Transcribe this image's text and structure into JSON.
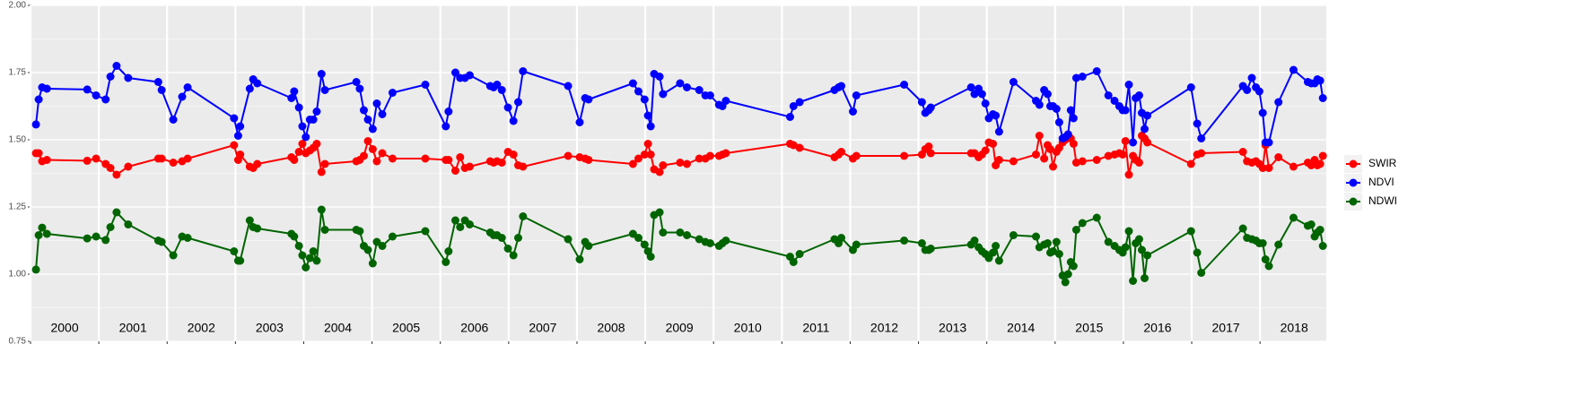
{
  "chart_data": {
    "type": "line",
    "x": [
      2000.08,
      2000.12,
      2000.17,
      2000.24,
      2000.83,
      2000.96,
      2001.1,
      2001.17,
      2001.26,
      2001.43,
      2001.87,
      2001.92,
      2002.09,
      2002.22,
      2002.3,
      2002.98,
      2003.04,
      2003.07,
      2003.21,
      2003.26,
      2003.32,
      2003.82,
      2003.86,
      2003.93,
      2003.98,
      2004.03,
      2004.09,
      2004.14,
      2004.19,
      2004.26,
      2004.31,
      2004.77,
      2004.82,
      2004.88,
      2004.94,
      2005.01,
      2005.07,
      2005.15,
      2005.3,
      2005.78,
      2006.08,
      2006.12,
      2006.22,
      2006.29,
      2006.36,
      2006.43,
      2006.73,
      2006.78,
      2006.83,
      2006.9,
      2006.99,
      2007.07,
      2007.14,
      2007.21,
      2007.87,
      2008.04,
      2008.12,
      2008.17,
      2008.82,
      2008.9,
      2008.99,
      2009.04,
      2009.08,
      2009.13,
      2009.21,
      2009.26,
      2009.51,
      2009.61,
      2009.79,
      2009.88,
      2009.95,
      2010.08,
      2010.13,
      2010.18,
      2011.12,
      2011.17,
      2011.26,
      2011.77,
      2011.83,
      2011.87,
      2012.04,
      2012.09,
      2012.79,
      2013.05,
      2013.1,
      2013.15,
      2013.18,
      2013.77,
      2013.82,
      2013.88,
      2013.93,
      2013.98,
      2014.03,
      2014.09,
      2014.13,
      2014.18,
      2014.39,
      2014.72,
      2014.77,
      2014.84,
      2014.89,
      2014.93,
      2014.97,
      2015.02,
      2015.06,
      2015.11,
      2015.15,
      2015.19,
      2015.23,
      2015.27,
      2015.31,
      2015.4,
      2015.61,
      2015.78,
      2015.87,
      2015.94,
      2015.99,
      2016.03,
      2016.08,
      2016.14,
      2016.18,
      2016.23,
      2016.27,
      2016.31,
      2016.35,
      2016.99,
      2017.08,
      2017.14,
      2017.75,
      2017.81,
      2017.88,
      2017.94,
      2017.99,
      2018.04,
      2018.08,
      2018.13,
      2018.27,
      2018.49,
      2018.7,
      2018.75,
      2018.8,
      2018.84,
      2018.88,
      2018.92
    ],
    "series": [
      {
        "name": "SWIR",
        "color": "#ff0000",
        "values": [
          1.45,
          1.45,
          1.42,
          1.425,
          1.422,
          1.43,
          1.41,
          1.395,
          1.37,
          1.4,
          1.43,
          1.43,
          1.415,
          1.42,
          1.43,
          1.48,
          1.425,
          1.445,
          1.4,
          1.395,
          1.41,
          1.435,
          1.425,
          1.455,
          1.485,
          1.45,
          1.46,
          1.47,
          1.485,
          1.38,
          1.41,
          1.42,
          1.425,
          1.44,
          1.495,
          1.465,
          1.42,
          1.45,
          1.43,
          1.43,
          1.425,
          1.425,
          1.385,
          1.435,
          1.395,
          1.4,
          1.42,
          1.415,
          1.42,
          1.415,
          1.455,
          1.445,
          1.405,
          1.4,
          1.44,
          1.435,
          1.43,
          1.425,
          1.41,
          1.43,
          1.445,
          1.485,
          1.445,
          1.39,
          1.38,
          1.405,
          1.415,
          1.41,
          1.43,
          1.43,
          1.44,
          1.44,
          1.445,
          1.45,
          1.485,
          1.48,
          1.47,
          1.435,
          1.445,
          1.455,
          1.43,
          1.44,
          1.44,
          1.445,
          1.465,
          1.475,
          1.45,
          1.45,
          1.45,
          1.435,
          1.445,
          1.46,
          1.49,
          1.485,
          1.405,
          1.425,
          1.42,
          1.445,
          1.515,
          1.43,
          1.48,
          1.465,
          1.4,
          1.455,
          1.47,
          1.49,
          1.5,
          1.52,
          1.505,
          1.485,
          1.415,
          1.42,
          1.425,
          1.44,
          1.445,
          1.45,
          1.445,
          1.495,
          1.37,
          1.44,
          1.425,
          1.415,
          1.515,
          1.505,
          1.49,
          1.41,
          1.445,
          1.45,
          1.455,
          1.42,
          1.415,
          1.42,
          1.41,
          1.395,
          1.48,
          1.395,
          1.435,
          1.4,
          1.415,
          1.405,
          1.425,
          1.405,
          1.41,
          1.44
        ]
      },
      {
        "name": "NDVI",
        "color": "#0000ff",
        "values": [
          1.557,
          1.65,
          1.695,
          1.69,
          1.687,
          1.665,
          1.65,
          1.735,
          1.775,
          1.73,
          1.715,
          1.685,
          1.575,
          1.66,
          1.695,
          1.58,
          1.515,
          1.55,
          1.69,
          1.725,
          1.71,
          1.655,
          1.68,
          1.62,
          1.55,
          1.51,
          1.575,
          1.575,
          1.605,
          1.745,
          1.685,
          1.715,
          1.69,
          1.61,
          1.575,
          1.54,
          1.635,
          1.595,
          1.675,
          1.705,
          1.55,
          1.605,
          1.75,
          1.73,
          1.73,
          1.74,
          1.7,
          1.695,
          1.705,
          1.685,
          1.62,
          1.57,
          1.64,
          1.755,
          1.7,
          1.565,
          1.655,
          1.65,
          1.71,
          1.68,
          1.65,
          1.59,
          1.55,
          1.745,
          1.735,
          1.67,
          1.71,
          1.695,
          1.685,
          1.665,
          1.665,
          1.63,
          1.625,
          1.645,
          1.585,
          1.625,
          1.64,
          1.685,
          1.695,
          1.7,
          1.605,
          1.665,
          1.705,
          1.64,
          1.6,
          1.61,
          1.62,
          1.695,
          1.67,
          1.69,
          1.67,
          1.635,
          1.58,
          1.595,
          1.59,
          1.53,
          1.715,
          1.645,
          1.63,
          1.685,
          1.67,
          1.625,
          1.625,
          1.615,
          1.565,
          1.505,
          1.51,
          1.52,
          1.61,
          1.58,
          1.73,
          1.735,
          1.755,
          1.665,
          1.645,
          1.625,
          1.61,
          1.61,
          1.705,
          1.49,
          1.655,
          1.665,
          1.6,
          1.54,
          1.59,
          1.695,
          1.56,
          1.505,
          1.7,
          1.685,
          1.73,
          1.695,
          1.68,
          1.6,
          1.49,
          1.49,
          1.64,
          1.76,
          1.715,
          1.71,
          1.71,
          1.725,
          1.72,
          1.655
        ]
      },
      {
        "name": "NDWI",
        "color": "#006400",
        "values": [
          1.017,
          1.145,
          1.173,
          1.15,
          1.133,
          1.14,
          1.127,
          1.175,
          1.23,
          1.185,
          1.125,
          1.12,
          1.07,
          1.14,
          1.135,
          1.085,
          1.05,
          1.05,
          1.2,
          1.175,
          1.17,
          1.15,
          1.14,
          1.105,
          1.07,
          1.025,
          1.06,
          1.085,
          1.05,
          1.24,
          1.165,
          1.165,
          1.16,
          1.105,
          1.09,
          1.04,
          1.12,
          1.105,
          1.14,
          1.16,
          1.045,
          1.085,
          1.2,
          1.175,
          1.2,
          1.185,
          1.155,
          1.145,
          1.145,
          1.135,
          1.095,
          1.07,
          1.135,
          1.215,
          1.13,
          1.055,
          1.12,
          1.105,
          1.15,
          1.135,
          1.11,
          1.085,
          1.065,
          1.22,
          1.23,
          1.155,
          1.155,
          1.145,
          1.13,
          1.12,
          1.115,
          1.105,
          1.115,
          1.125,
          1.065,
          1.045,
          1.075,
          1.13,
          1.115,
          1.135,
          1.09,
          1.11,
          1.125,
          1.115,
          1.09,
          1.09,
          1.095,
          1.11,
          1.125,
          1.1,
          1.085,
          1.075,
          1.06,
          1.08,
          1.105,
          1.05,
          1.145,
          1.14,
          1.1,
          1.11,
          1.115,
          1.08,
          1.085,
          1.12,
          1.075,
          0.995,
          0.97,
          1.0,
          1.045,
          1.03,
          1.165,
          1.19,
          1.21,
          1.12,
          1.105,
          1.09,
          1.08,
          1.1,
          1.16,
          0.975,
          1.115,
          1.13,
          1.09,
          0.985,
          1.07,
          1.16,
          1.08,
          1.005,
          1.17,
          1.135,
          1.13,
          1.125,
          1.115,
          1.115,
          1.055,
          1.03,
          1.11,
          1.21,
          1.18,
          1.185,
          1.14,
          1.155,
          1.165,
          1.105
        ]
      }
    ],
    "xlim": [
      2000,
      2018.97
    ],
    "xticks": [
      2000,
      2001,
      2002,
      2003,
      2004,
      2005,
      2006,
      2007,
      2008,
      2009,
      2010,
      2011,
      2012,
      2013,
      2014,
      2015,
      2016,
      2017,
      2018
    ],
    "ylim": [
      0.75,
      2.0
    ],
    "yticks": [
      {
        "value": 0.75,
        "label": "0.75"
      },
      {
        "value": 1.0,
        "label": "1.00"
      },
      {
        "value": 1.25,
        "label": "1.25"
      },
      {
        "value": 1.5,
        "label": "1.50"
      },
      {
        "value": 1.75,
        "label": "1.75"
      },
      {
        "value": 2.0,
        "label": "2.00"
      }
    ],
    "grid": true,
    "legend": "right"
  }
}
